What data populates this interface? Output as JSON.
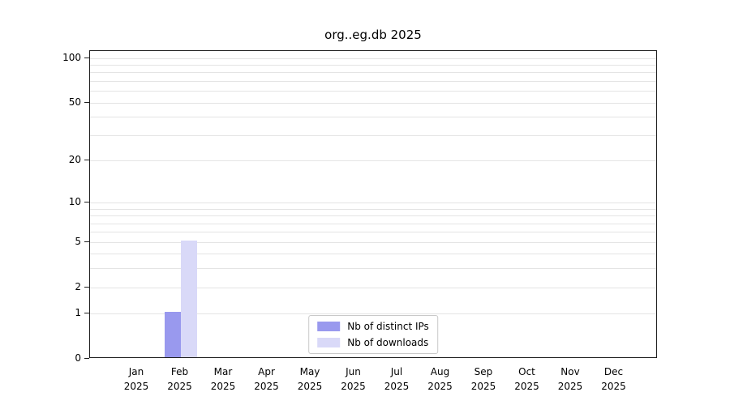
{
  "chart_data": {
    "type": "bar",
    "title": "org..eg.db 2025",
    "categories": [
      "Jan",
      "Feb",
      "Mar",
      "Apr",
      "May",
      "Jun",
      "Jul",
      "Aug",
      "Sep",
      "Oct",
      "Nov",
      "Dec"
    ],
    "year_label": "2025",
    "series": [
      {
        "key": "distinct-ips",
        "name": "Nb of distinct IPs",
        "color": "#9999ee",
        "values": [
          0,
          1,
          0,
          0,
          0,
          0,
          0,
          0,
          0,
          0,
          0,
          0
        ]
      },
      {
        "key": "downloads",
        "name": "Nb of downloads",
        "color": "#d9d9f8",
        "values": [
          0,
          5,
          0,
          0,
          0,
          0,
          0,
          0,
          0,
          0,
          0,
          0
        ]
      }
    ],
    "yscale": "log1p",
    "ytick_labels": [
      "0",
      "1",
      "2",
      "5",
      "10",
      "20",
      "50",
      "100"
    ],
    "ytick_values": [
      0,
      1,
      2,
      5,
      10,
      20,
      50,
      100
    ],
    "minor_gridline_values": [
      1,
      2,
      3,
      4,
      5,
      6,
      7,
      8,
      9,
      10,
      20,
      30,
      40,
      50,
      60,
      70,
      80,
      90,
      100
    ],
    "ylim": [
      0,
      110
    ],
    "grid": "horizontal",
    "legend_position": "lower center"
  }
}
